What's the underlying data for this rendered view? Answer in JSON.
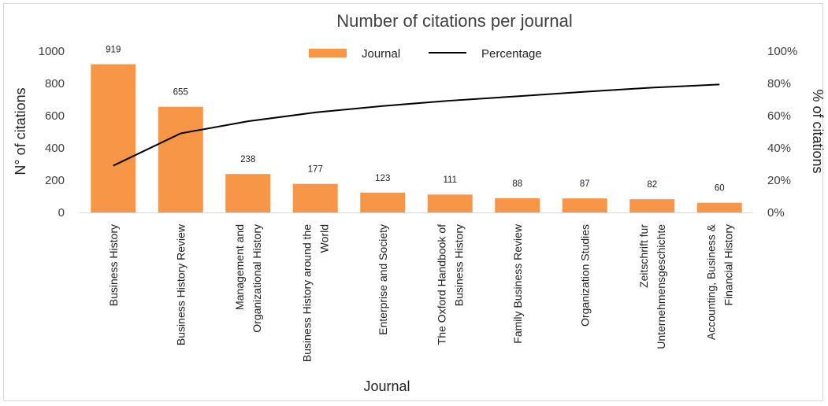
{
  "chart_data": {
    "type": "bar",
    "title": "Number of citations per journal",
    "xlabel": "Journal",
    "ylabel": "N° of citations",
    "y2label": "% of citations",
    "ylim": [
      0,
      1000
    ],
    "y2lim": [
      0,
      100
    ],
    "yticks": [
      "0",
      "200",
      "400",
      "600",
      "800",
      "1000"
    ],
    "y2ticks": [
      "0%",
      "20%",
      "40%",
      "60%",
      "80%",
      "100%"
    ],
    "categories": [
      [
        "Business History"
      ],
      [
        "Business History Review"
      ],
      [
        "Management and",
        "Organizational History"
      ],
      [
        "Business History around the",
        "World"
      ],
      [
        "Enterprise and Society"
      ],
      [
        "The Oxford Handbook of",
        "Business History"
      ],
      [
        "Family Business Review"
      ],
      [
        "Organization Studies"
      ],
      [
        "Zeitschrift fur",
        "Unternehmensgeschichte"
      ],
      [
        "Accounting, Business &",
        "Financial History"
      ]
    ],
    "series": [
      {
        "name": "Journal",
        "type": "bar",
        "color": "#f79646",
        "values": [
          919,
          655,
          238,
          177,
          123,
          111,
          88,
          87,
          82,
          60
        ],
        "labels": [
          "919",
          "655",
          "238",
          "177",
          "123",
          "111",
          "88",
          "87",
          "82",
          "60"
        ]
      },
      {
        "name": "Percentage",
        "type": "line",
        "axis": "right",
        "color": "#000000",
        "values": [
          29.0,
          49.0,
          56.5,
          62.0,
          66.0,
          69.3,
          72.0,
          74.8,
          77.4,
          79.3
        ]
      }
    ],
    "legend": {
      "position": "top-center",
      "entries": [
        "Journal",
        "Percentage"
      ]
    }
  }
}
